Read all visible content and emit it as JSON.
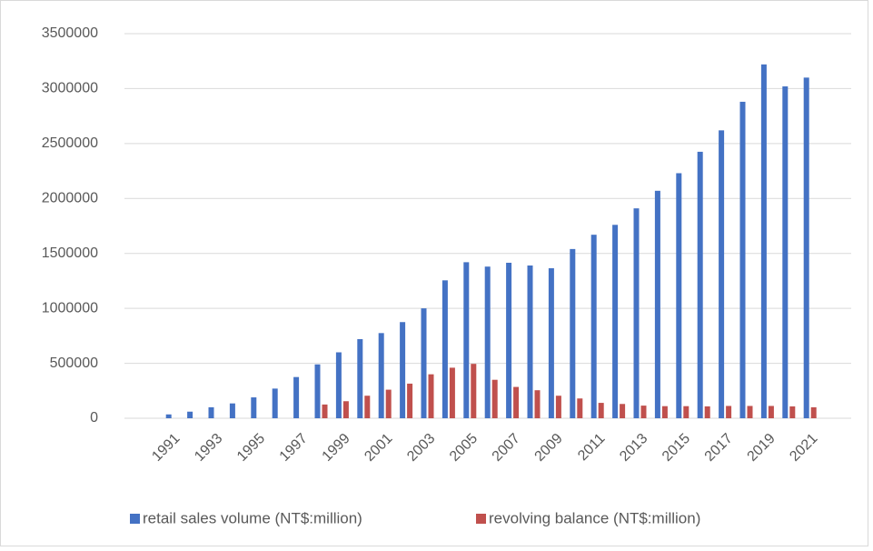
{
  "chart_data": {
    "type": "bar",
    "categories": [
      1991,
      null,
      1993,
      null,
      1995,
      null,
      1997,
      null,
      1999,
      null,
      2001,
      null,
      2003,
      null,
      2005,
      null,
      2007,
      null,
      2009,
      null,
      2011,
      null,
      2013,
      null,
      2015,
      null,
      2017,
      null,
      2019,
      null,
      2021
    ],
    "series": [
      {
        "name": "retail sales volume (NT$:million)",
        "color": "#4472c4",
        "values": [
          35000,
          60000,
          100000,
          135000,
          190000,
          270000,
          375000,
          490000,
          600000,
          720000,
          775000,
          875000,
          1000000,
          1255000,
          1420000,
          1380000,
          1415000,
          1390000,
          1365000,
          1540000,
          1670000,
          1760000,
          1910000,
          2070000,
          2230000,
          2425000,
          2620000,
          2880000,
          3220000,
          3020000,
          3100000
        ]
      },
      {
        "name": "revolving balance (NT$:million)",
        "color": "#c0504d",
        "values": [
          null,
          null,
          null,
          null,
          null,
          null,
          null,
          125000,
          155000,
          205000,
          260000,
          315000,
          400000,
          460000,
          495000,
          350000,
          285000,
          255000,
          205000,
          180000,
          140000,
          130000,
          115000,
          110000,
          110000,
          108000,
          112000,
          112000,
          112000,
          108000,
          100000
        ]
      }
    ],
    "ylim": [
      0,
      3500000
    ],
    "yticks": [
      0,
      500000,
      1000000,
      1500000,
      2000000,
      2500000,
      3000000,
      3500000
    ],
    "grid": true,
    "legend": "bottom"
  }
}
